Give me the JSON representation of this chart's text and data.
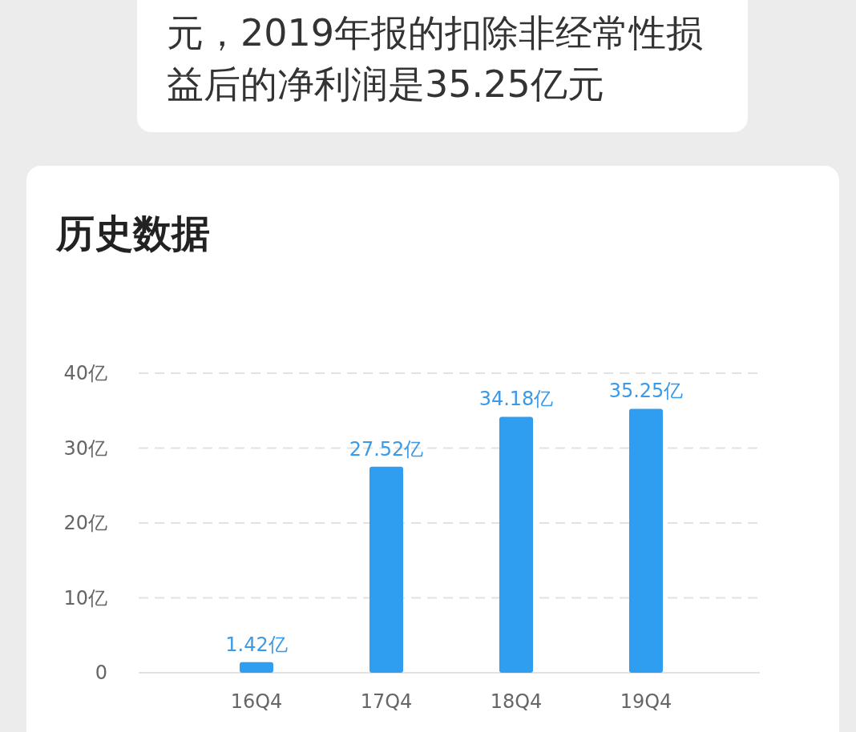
{
  "chart_data": {
    "type": "bar",
    "title": "历史数据",
    "annotations": [
      "元，2019年报的扣除非经常性损益后的净利润是35.25亿元"
    ],
    "categories": [
      "16Q4",
      "17Q4",
      "18Q4",
      "19Q4"
    ],
    "values": [
      1.42,
      27.52,
      34.18,
      35.25
    ],
    "value_labels": [
      "1.42亿",
      "27.52亿",
      "34.18亿",
      "35.25亿"
    ],
    "color": "#2f9ef0",
    "ylim": [
      0,
      40
    ],
    "yticks": [
      {
        "value": 0,
        "label": "0"
      },
      {
        "value": 10,
        "label": "10亿"
      },
      {
        "value": 20,
        "label": "20亿"
      },
      {
        "value": 30,
        "label": "30亿"
      },
      {
        "value": 40,
        "label": "40亿"
      }
    ],
    "grid": "y"
  }
}
